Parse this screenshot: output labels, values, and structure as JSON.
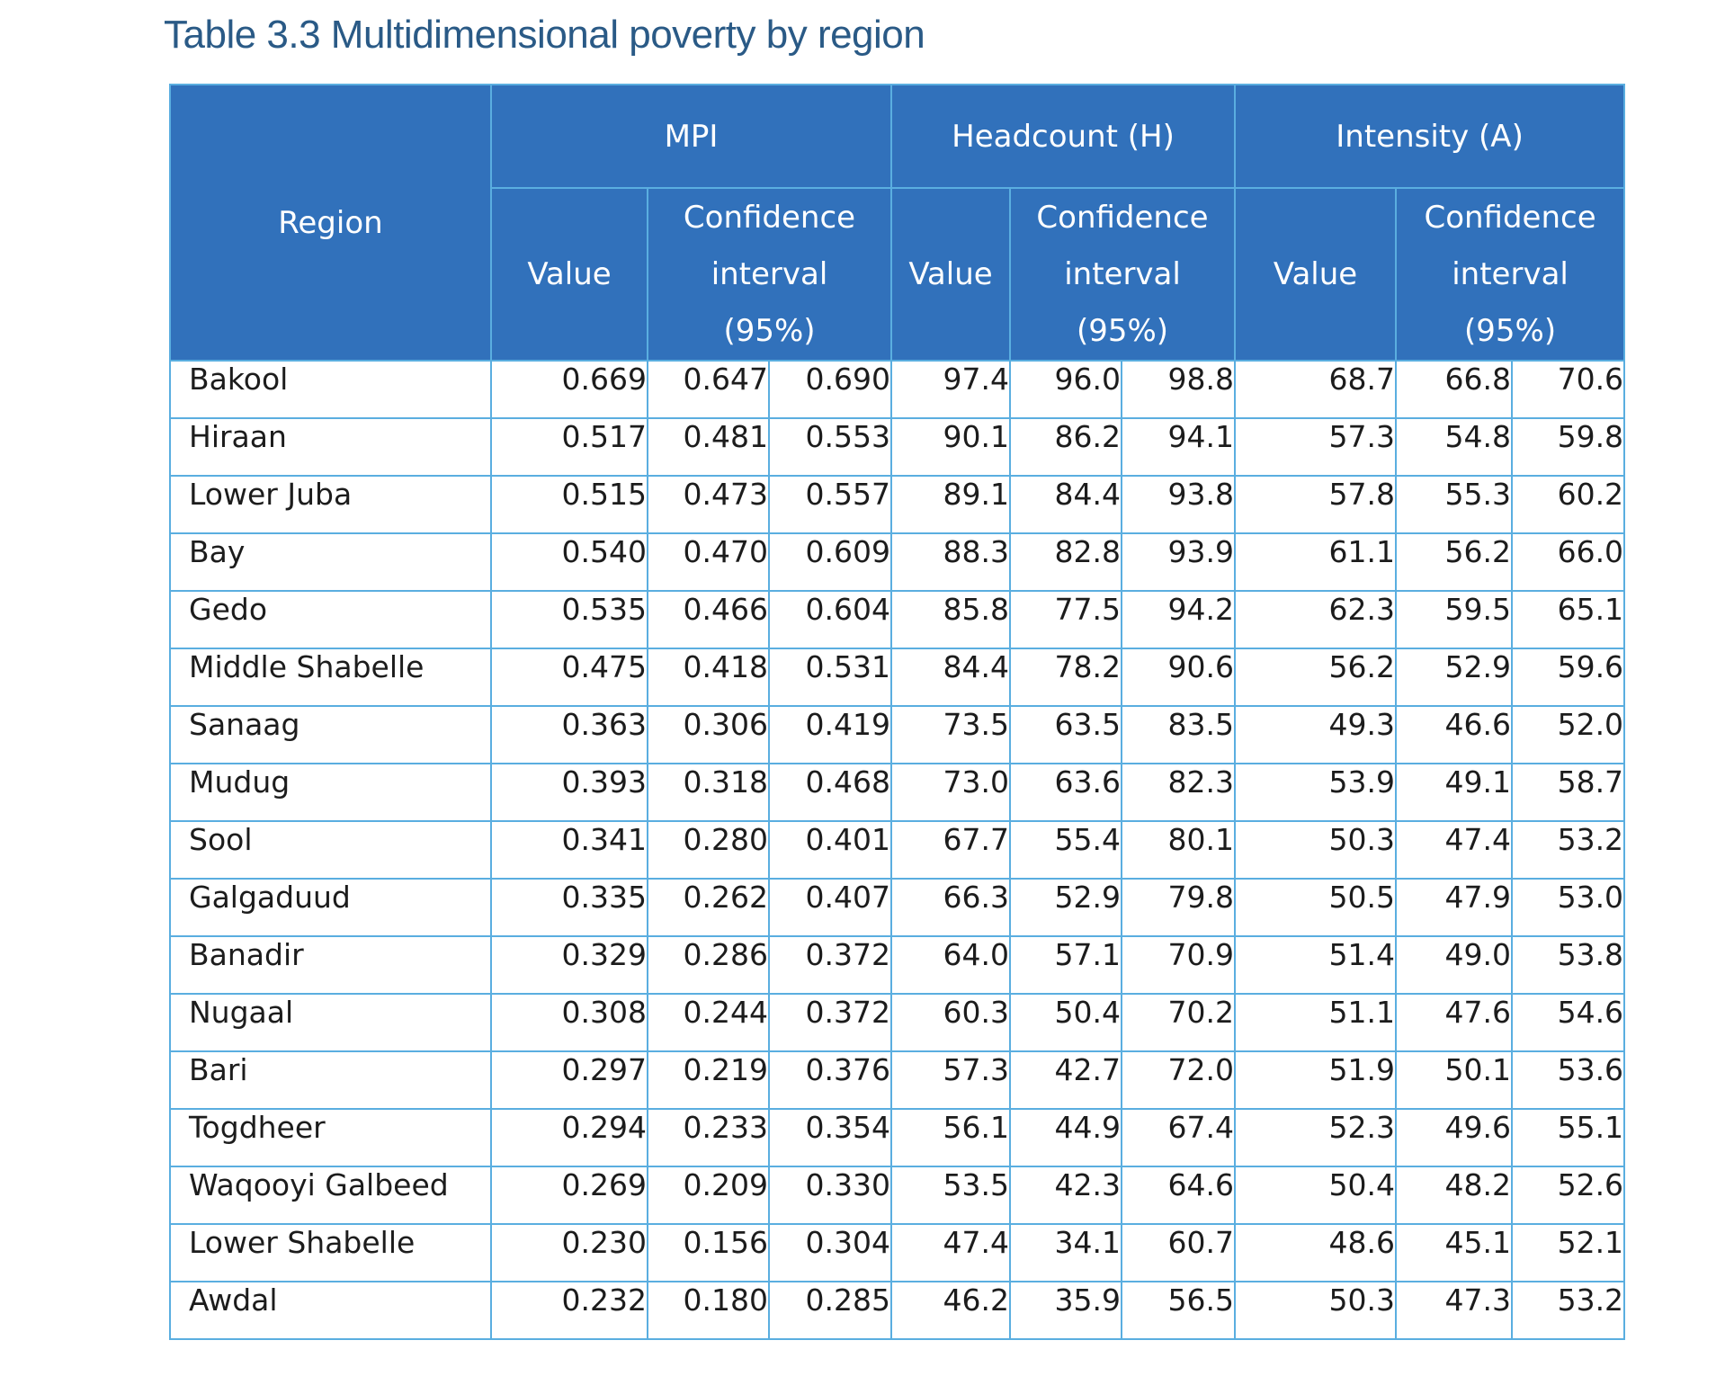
{
  "title": "Table 3.3 Multidimensional poverty by region",
  "header": {
    "region": "Region",
    "groups": {
      "mpi": "MPI",
      "headcount": "Headcount (H)",
      "intensity": "Intensity (A)"
    },
    "value": "Value",
    "ci_line1": "Confidence",
    "ci_line2": "interval",
    "ci_line3": "(95%)"
  },
  "rows": [
    {
      "region": "Bakool",
      "cells": [
        "0.669",
        "0.647",
        "0.690",
        "97.4",
        "96.0",
        "98.8",
        "68.7",
        "66.8",
        "70.6"
      ]
    },
    {
      "region": "Hiraan",
      "cells": [
        "0.517",
        "0.481",
        "0.553",
        "90.1",
        "86.2",
        "94.1",
        "57.3",
        "54.8",
        "59.8"
      ]
    },
    {
      "region": "Lower Juba",
      "cells": [
        "0.515",
        "0.473",
        "0.557",
        "89.1",
        "84.4",
        "93.8",
        "57.8",
        "55.3",
        "60.2"
      ]
    },
    {
      "region": "Bay",
      "cells": [
        "0.540",
        "0.470",
        "0.609",
        "88.3",
        "82.8",
        "93.9",
        "61.1",
        "56.2",
        "66.0"
      ]
    },
    {
      "region": "Gedo",
      "cells": [
        "0.535",
        "0.466",
        "0.604",
        "85.8",
        "77.5",
        "94.2",
        "62.3",
        "59.5",
        "65.1"
      ]
    },
    {
      "region": "Middle Shabelle",
      "cells": [
        "0.475",
        "0.418",
        "0.531",
        "84.4",
        "78.2",
        "90.6",
        "56.2",
        "52.9",
        "59.6"
      ]
    },
    {
      "region": "Sanaag",
      "cells": [
        "0.363",
        "0.306",
        "0.419",
        "73.5",
        "63.5",
        "83.5",
        "49.3",
        "46.6",
        "52.0"
      ]
    },
    {
      "region": "Mudug",
      "cells": [
        "0.393",
        "0.318",
        "0.468",
        "73.0",
        "63.6",
        "82.3",
        "53.9",
        "49.1",
        "58.7"
      ]
    },
    {
      "region": "Sool",
      "cells": [
        "0.341",
        "0.280",
        "0.401",
        "67.7",
        "55.4",
        "80.1",
        "50.3",
        "47.4",
        "53.2"
      ]
    },
    {
      "region": "Galgaduud",
      "cells": [
        "0.335",
        "0.262",
        "0.407",
        "66.3",
        "52.9",
        "79.8",
        "50.5",
        "47.9",
        "53.0"
      ]
    },
    {
      "region": "Banadir",
      "cells": [
        "0.329",
        "0.286",
        "0.372",
        "64.0",
        "57.1",
        "70.9",
        "51.4",
        "49.0",
        "53.8"
      ]
    },
    {
      "region": "Nugaal",
      "cells": [
        "0.308",
        "0.244",
        "0.372",
        "60.3",
        "50.4",
        "70.2",
        "51.1",
        "47.6",
        "54.6"
      ]
    },
    {
      "region": "Bari",
      "cells": [
        "0.297",
        "0.219",
        "0.376",
        "57.3",
        "42.7",
        "72.0",
        "51.9",
        "50.1",
        "53.6"
      ]
    },
    {
      "region": "Togdheer",
      "cells": [
        "0.294",
        "0.233",
        "0.354",
        "56.1",
        "44.9",
        "67.4",
        "52.3",
        "49.6",
        "55.1"
      ]
    },
    {
      "region": "Waqooyi Galbeed",
      "cells": [
        "0.269",
        "0.209",
        "0.330",
        "53.5",
        "42.3",
        "64.6",
        "50.4",
        "48.2",
        "52.6"
      ]
    },
    {
      "region": "Lower Shabelle",
      "cells": [
        "0.230",
        "0.156",
        "0.304",
        "47.4",
        "34.1",
        "60.7",
        "48.6",
        "45.1",
        "52.1"
      ]
    },
    {
      "region": "Awdal",
      "cells": [
        "0.232",
        "0.180",
        "0.285",
        "46.2",
        "35.9",
        "56.5",
        "50.3",
        "47.3",
        "53.2"
      ]
    }
  ]
}
